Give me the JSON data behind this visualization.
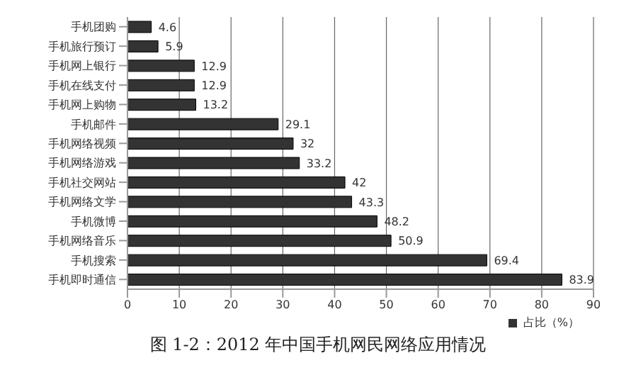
{
  "chart_data": {
    "type": "bar",
    "orientation": "horizontal",
    "title": "图 1-2：2012 年中国手机网民网络应用情况",
    "categories": [
      "手机团购",
      "手机旅行预订",
      "手机网上银行",
      "手机在线支付",
      "手机网上购物",
      "手机邮件",
      "手机网络视频",
      "手机网络游戏",
      "手机社交网站",
      "手机网络文学",
      "手机微博",
      "手机网络音乐",
      "手机搜索",
      "手机即时通信"
    ],
    "series": [
      {
        "name": "占比（%）",
        "color": "#333333",
        "values": [
          4.6,
          5.9,
          12.9,
          12.9,
          13.2,
          29.1,
          32,
          33.2,
          42,
          43.3,
          48.2,
          50.9,
          69.4,
          83.9
        ]
      }
    ],
    "xlim": [
      0,
      90
    ],
    "xticks": [
      0,
      10,
      20,
      30,
      40,
      50,
      60,
      70,
      80,
      90
    ],
    "grid": "x",
    "legend": "bottom right",
    "data_labels": true
  }
}
